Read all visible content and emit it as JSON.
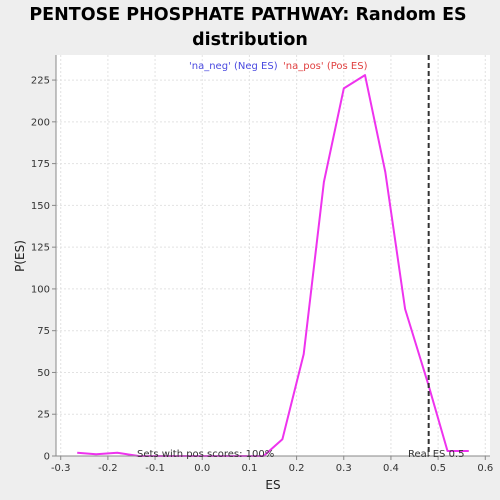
{
  "chart_data": {
    "type": "line",
    "title_lines": [
      "PENTOSE PHOSPHATE PATHWAY: Random ES",
      "distribution"
    ],
    "xlabel": "ES",
    "ylabel": "P(ES)",
    "xlim": [
      -0.31,
      0.61
    ],
    "ylim": [
      0,
      240
    ],
    "x_ticks": [
      -0.3,
      -0.2,
      -0.1,
      0.0,
      0.1,
      0.2,
      0.3,
      0.4,
      0.5,
      0.6
    ],
    "x_tick_labels": [
      "-0.3",
      "-0.2",
      "-0.1",
      "0.0",
      "0.1",
      "0.2",
      "0.3",
      "0.4",
      "0.5",
      "0.6"
    ],
    "y_ticks": [
      0,
      25,
      50,
      75,
      100,
      125,
      150,
      175,
      200,
      225
    ],
    "y_tick_labels": [
      "0",
      "25",
      "50",
      "75",
      "100",
      "125",
      "150",
      "175",
      "200",
      "225"
    ],
    "grid": true,
    "legend_placement": "top-center",
    "legend": [
      {
        "label": "'na_neg' (Neg ES)",
        "color": "#4a4ae0"
      },
      {
        "label": "'na_pos' (Pos ES)",
        "color": "#e04040"
      }
    ],
    "series": [
      {
        "color": "#ee33ee",
        "x": [
          -0.265,
          -0.225,
          -0.18,
          -0.135,
          0.045,
          0.13,
          0.17,
          0.215,
          0.258,
          0.3,
          0.345,
          0.388,
          0.43,
          0.48,
          0.52,
          0.565
        ],
        "y": [
          2,
          1,
          2,
          0,
          0,
          0,
          10,
          61,
          164,
          220,
          228,
          170,
          88,
          42,
          3,
          3
        ]
      }
    ],
    "real_es": {
      "x": 0.48,
      "label": "Real ES 0.5"
    },
    "footer_annotation": "Sets with pos scores: 100%"
  },
  "colors": {
    "background": "#eeeeee",
    "plot_bg": "#ffffff",
    "grid": "#e2e2e2",
    "line": "#ee33ee",
    "real_es_line": "#333333"
  }
}
